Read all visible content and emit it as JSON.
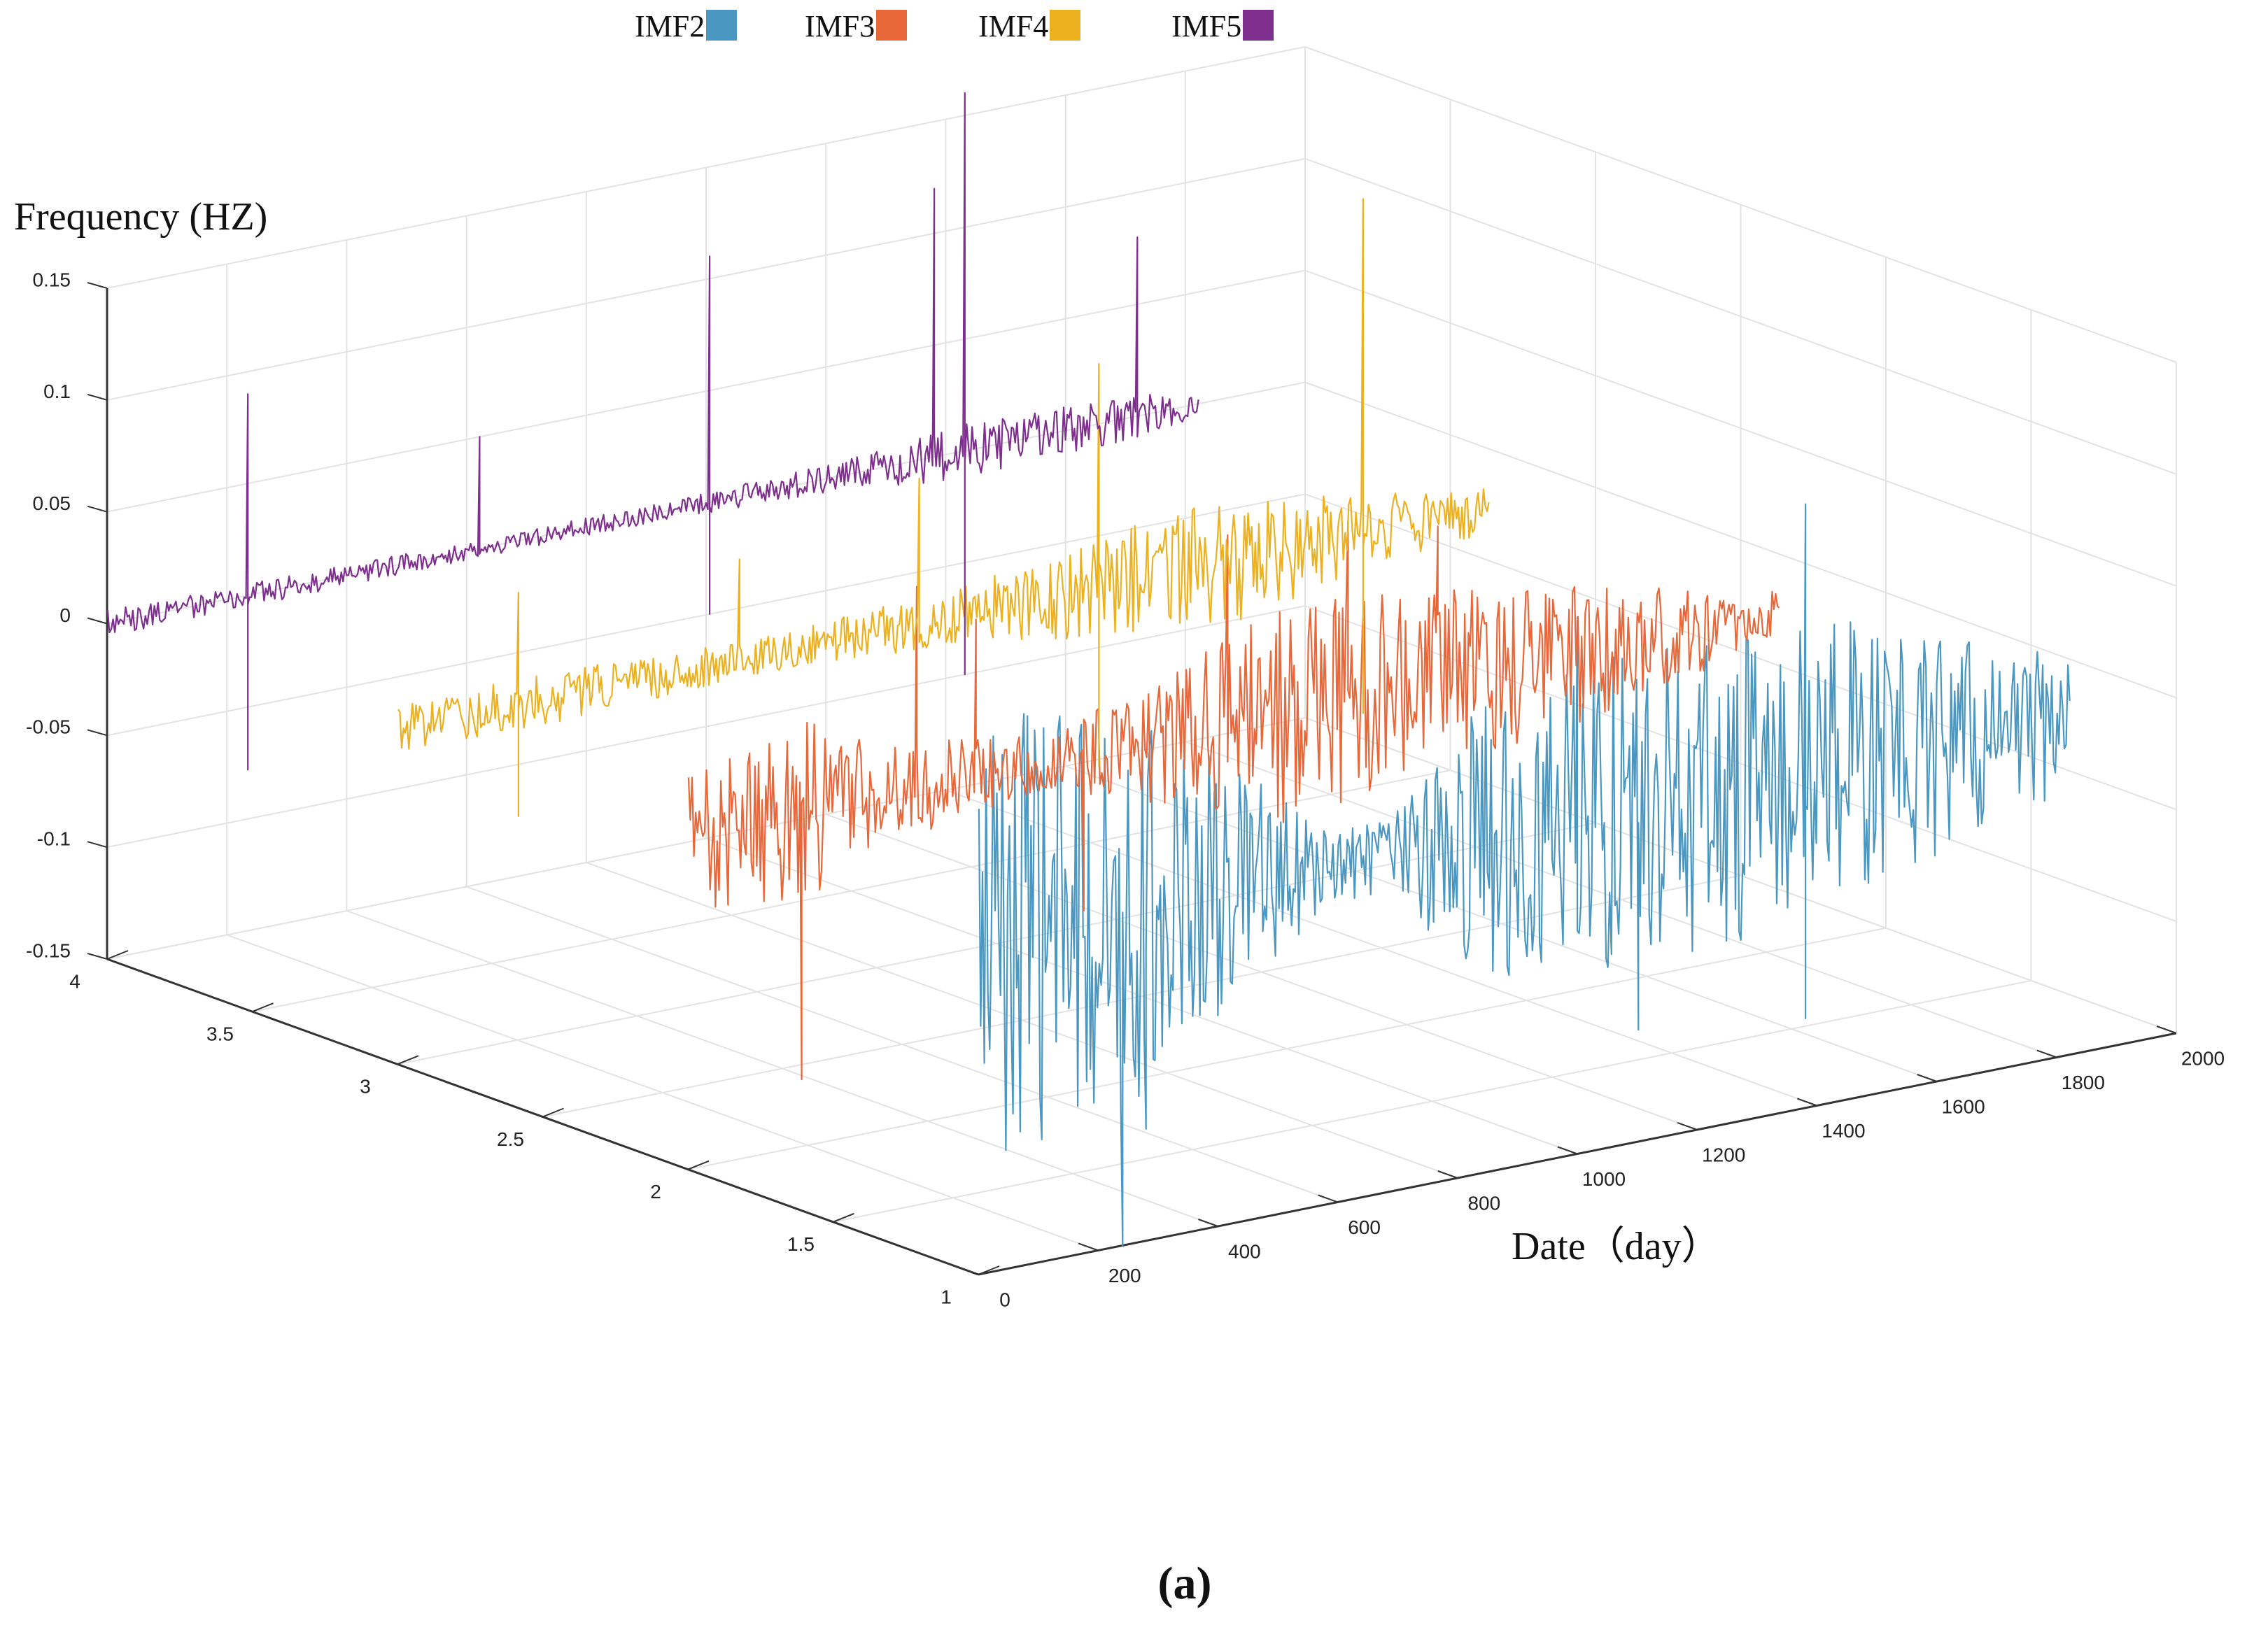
{
  "chart_data": {
    "type": "line",
    "title": "",
    "xlabel": "Date（day）",
    "ylabel": "",
    "zlabel": "Frequency (HZ)",
    "caption": "(a)",
    "xlim": [
      0,
      2000
    ],
    "ylim": [
      1,
      4
    ],
    "zlim": [
      -0.15,
      0.15
    ],
    "xticks": [
      0,
      200,
      400,
      600,
      800,
      1000,
      1200,
      1400,
      1600,
      1800,
      2000
    ],
    "yticks": [
      1,
      1.5,
      2,
      2.5,
      3,
      3.5,
      4
    ],
    "zticks": [
      -0.15,
      -0.1,
      -0.05,
      0,
      0.05,
      0.1,
      0.15
    ],
    "xtick_labels": [
      "0",
      "200",
      "400",
      "600",
      "800",
      "1000",
      "1200",
      "1400",
      "1600",
      "1800",
      "2000"
    ],
    "ytick_labels": [
      "1",
      "1.5",
      "2",
      "2.5",
      "3",
      "3.5",
      "4"
    ],
    "ztick_labels": [
      "-0.15",
      "-0.1",
      "-0.05",
      "0",
      "0.05",
      "0.1",
      "0.15"
    ],
    "grid": true,
    "legend_position": "top",
    "series": [
      {
        "name": "IMF2",
        "color": "#4a97c2",
        "y": 1,
        "x_range": [
          1,
          1823
        ],
        "amplitude_profile": [
          [
            0,
            0.1
          ],
          [
            250,
            0.09
          ],
          [
            400,
            0.06
          ],
          [
            600,
            0.015
          ],
          [
            700,
            0.02
          ],
          [
            800,
            0.06
          ],
          [
            1000,
            0.07
          ],
          [
            1300,
            0.075
          ],
          [
            1500,
            0.06
          ],
          [
            1700,
            0.045
          ],
          [
            1823,
            0.03
          ]
        ],
        "spikes": [
          [
            240,
            -0.15
          ],
          [
            1380,
            0.12
          ],
          [
            1380,
            -0.11
          ],
          [
            1100,
            -0.1
          ],
          [
            1000,
            0.09
          ],
          [
            280,
            -0.1
          ]
        ]
      },
      {
        "name": "IMF3",
        "color": "#e8683a",
        "y": 2,
        "x_range": [
          1,
          1823
        ],
        "amplitude_profile": [
          [
            0,
            0.035
          ],
          [
            200,
            0.04
          ],
          [
            400,
            0.02
          ],
          [
            600,
            0.012
          ],
          [
            800,
            0.03
          ],
          [
            1000,
            0.05
          ],
          [
            1200,
            0.045
          ],
          [
            1400,
            0.035
          ],
          [
            1600,
            0.025
          ],
          [
            1823,
            0.01
          ]
        ],
        "spikes": [
          [
            190,
            -0.12
          ],
          [
            380,
            0.09
          ],
          [
            480,
            0.07
          ],
          [
            660,
            -0.07
          ],
          [
            900,
            0.085
          ],
          [
            1100,
            0.08
          ],
          [
            1250,
            0.07
          ]
        ]
      },
      {
        "name": "IMF4",
        "color": "#edb120",
        "y": 3,
        "x_range": [
          1,
          1823
        ],
        "amplitude_profile": [
          [
            0,
            0.01
          ],
          [
            200,
            0.012
          ],
          [
            600,
            0.008
          ],
          [
            900,
            0.012
          ],
          [
            1100,
            0.02
          ],
          [
            1400,
            0.03
          ],
          [
            1600,
            0.018
          ],
          [
            1823,
            0.01
          ]
        ],
        "spikes": [
          [
            200,
            0.05
          ],
          [
            200,
            -0.05
          ],
          [
            570,
            0.045
          ],
          [
            870,
            0.065
          ],
          [
            1170,
            0.1
          ],
          [
            1170,
            -0.08
          ],
          [
            1610,
            0.15
          ],
          [
            1610,
            -0.08
          ]
        ]
      },
      {
        "name": "IMF5",
        "color": "#7e2f8e",
        "y": 4,
        "x_range": [
          1,
          1823
        ],
        "amplitude_profile": [
          [
            0,
            0.006
          ],
          [
            300,
            0.005
          ],
          [
            600,
            0.004
          ],
          [
            900,
            0.004
          ],
          [
            1200,
            0.006
          ],
          [
            1400,
            0.012
          ],
          [
            1700,
            0.01
          ],
          [
            1823,
            0.006
          ]
        ],
        "spikes": [
          [
            235,
            0.09
          ],
          [
            235,
            -0.078
          ],
          [
            620,
            0.05
          ],
          [
            1005,
            0.11
          ],
          [
            1005,
            -0.05
          ],
          [
            1380,
            0.12
          ],
          [
            1430,
            0.16
          ],
          [
            1430,
            -0.1
          ],
          [
            1720,
            0.08
          ]
        ]
      }
    ]
  },
  "legend": {
    "items": [
      {
        "label": "IMF2",
        "color": "#4a97c2"
      },
      {
        "label": "IMF3",
        "color": "#e8683a"
      },
      {
        "label": "IMF4",
        "color": "#edb120"
      },
      {
        "label": "IMF5",
        "color": "#7e2f8e"
      }
    ]
  }
}
